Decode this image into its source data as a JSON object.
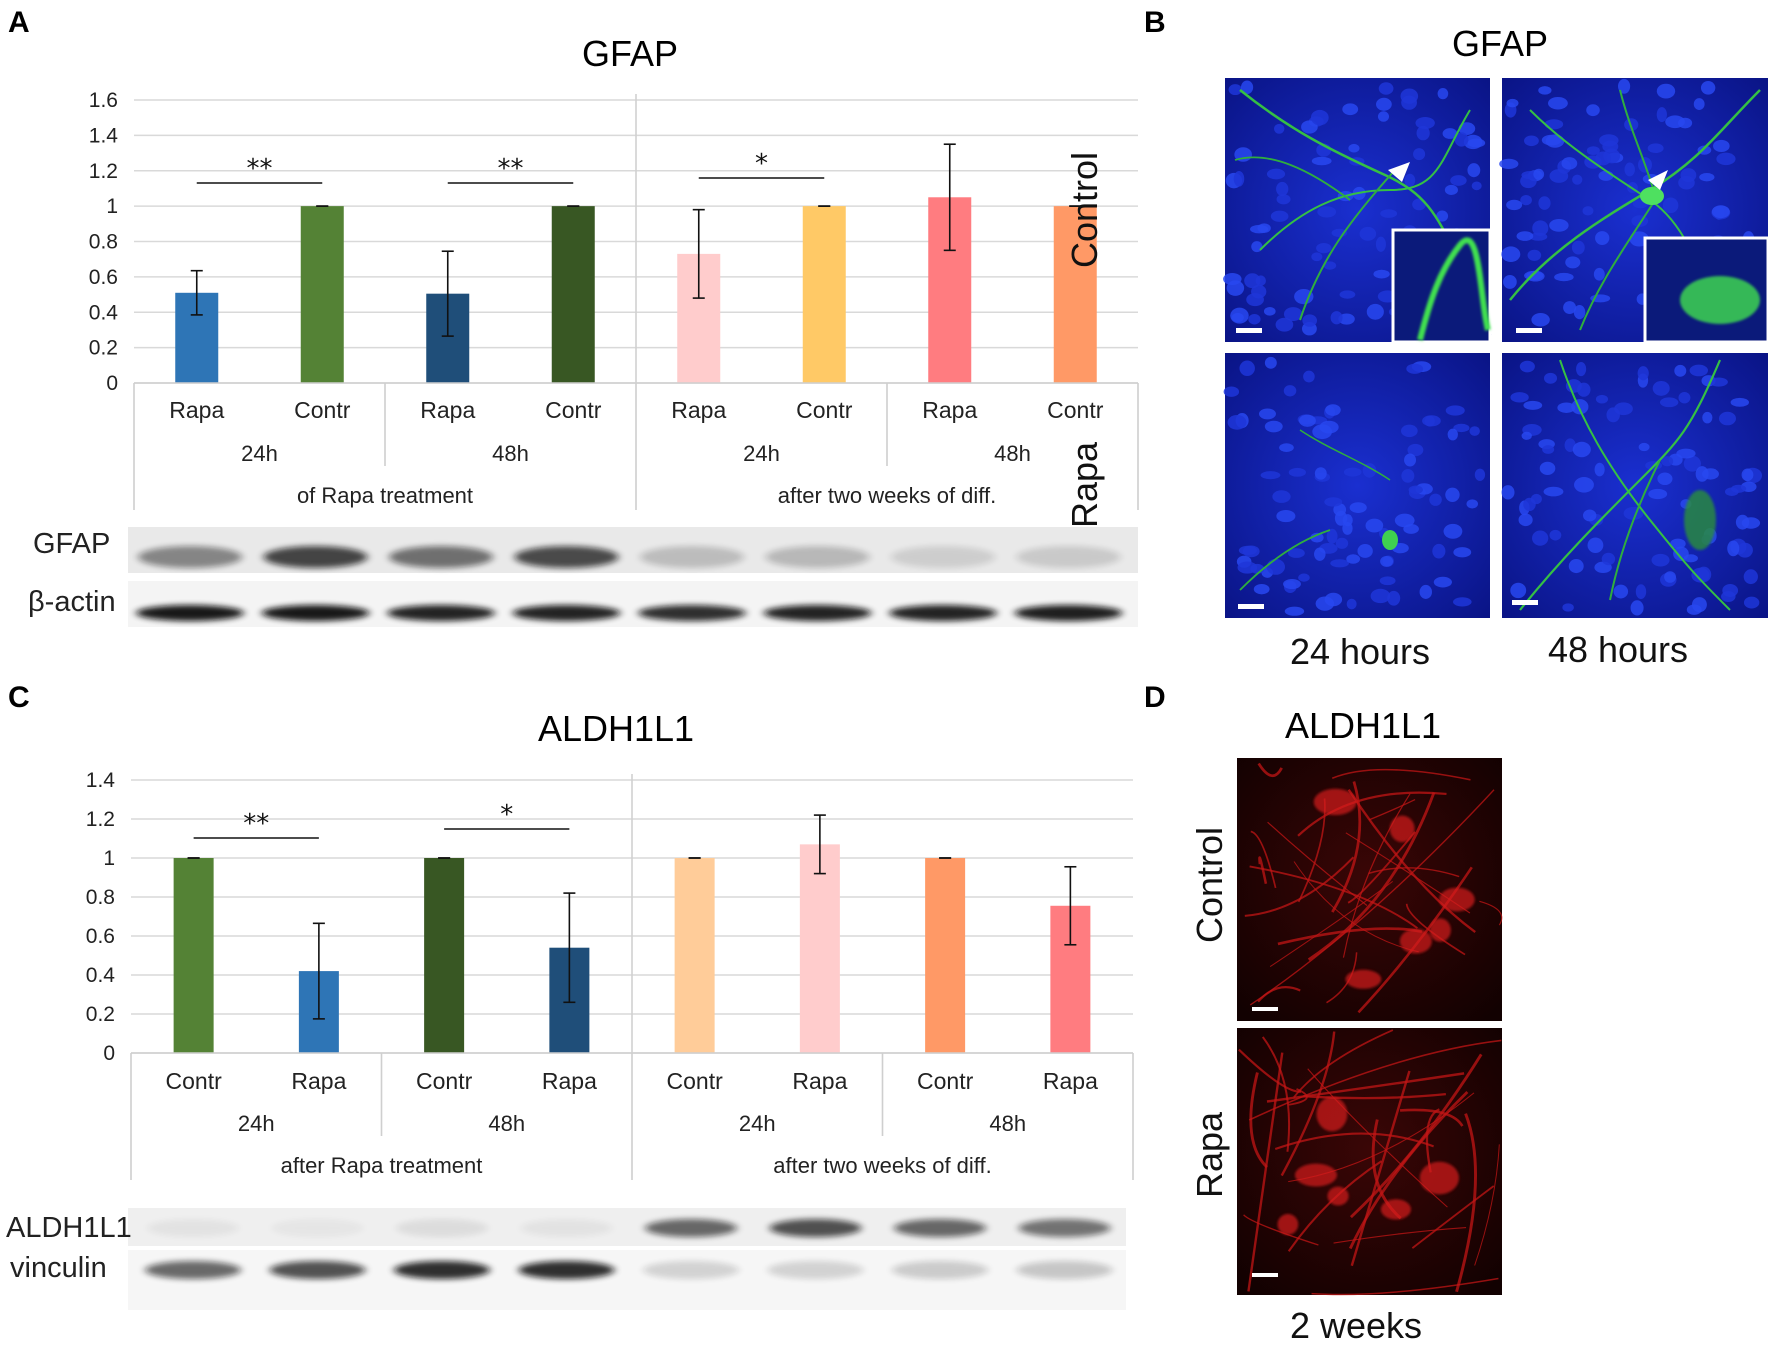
{
  "panels": {
    "A": "A",
    "B": "B",
    "C": "C",
    "D": "D"
  },
  "chart_data": [
    {
      "type": "bar",
      "title": "GFAP",
      "categories": [
        "Rapa",
        "Contr",
        "Rapa",
        "Contr",
        "Rapa",
        "Contr",
        "Rapa",
        "Contr"
      ],
      "values": [
        0.51,
        1.0,
        0.505,
        1.0,
        0.73,
        1.0,
        1.05,
        1.0
      ],
      "errors": [
        0.125,
        0,
        0.24,
        0,
        0.25,
        0,
        0.3,
        0
      ],
      "colors": [
        "#2e75b6",
        "#548235",
        "#1f4e79",
        "#385723",
        "#ffcccc",
        "#ffc966",
        "#ff7c80",
        "#ff9966"
      ],
      "ylim": [
        0,
        1.6
      ],
      "yticks": [
        "0",
        "0.2",
        "0.4",
        "0.6",
        "0.8",
        "1",
        "1.2",
        "1.4",
        "1.6"
      ],
      "time_groups": [
        "24h",
        "48h",
        "24h",
        "48h"
      ],
      "phase_groups": [
        "of Rapa treatment",
        "after two weeks of diff."
      ],
      "significance": [
        "**",
        "**",
        "*"
      ],
      "grid": true,
      "blots": [
        "GFAP",
        "β-actin"
      ]
    },
    {
      "type": "bar",
      "title": "ALDH1L1",
      "categories": [
        "Contr",
        "Rapa",
        "Contr",
        "Rapa",
        "Contr",
        "Rapa",
        "Contr",
        "Rapa"
      ],
      "values": [
        1.0,
        0.42,
        1.0,
        0.54,
        1.0,
        1.07,
        1.0,
        0.755
      ],
      "errors": [
        0,
        0.245,
        0,
        0.28,
        0,
        0.15,
        0,
        0.2
      ],
      "colors": [
        "#548235",
        "#2e75b6",
        "#385723",
        "#1f4e79",
        "#ffcc99",
        "#ffcccc",
        "#ff9966",
        "#ff7c80"
      ],
      "ylim": [
        0,
        1.4
      ],
      "yticks": [
        "0",
        "0.2",
        "0.4",
        "0.6",
        "0.8",
        "1",
        "1.2",
        "1.4"
      ],
      "time_groups": [
        "24h",
        "48h",
        "24h",
        "48h"
      ],
      "phase_groups": [
        "after Rapa treatment",
        "after two weeks of diff."
      ],
      "significance": [
        "**",
        "*"
      ],
      "grid": true,
      "blots": [
        "ALDH1L1",
        "vinculin"
      ]
    }
  ],
  "micrographs_B": {
    "title": "GFAP",
    "rows": [
      "Control",
      "Rapa"
    ],
    "columns": [
      "24 hours",
      "48 hours"
    ]
  },
  "micrographs_D": {
    "title": "ALDH1L1",
    "rows": [
      "Control",
      "Rapa"
    ],
    "column": "2 weeks"
  }
}
